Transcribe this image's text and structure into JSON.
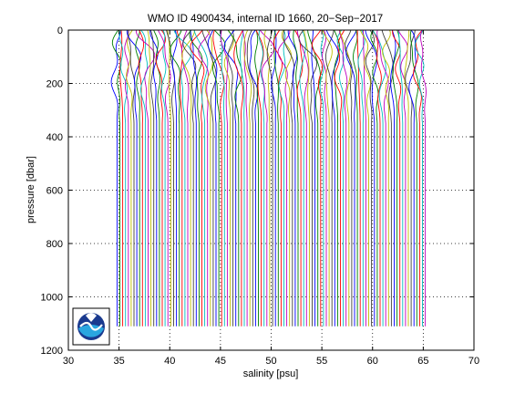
{
  "chart_data": {
    "type": "line",
    "title": "WMO ID 4900434, internal ID 1660, 20−Sep−2017",
    "xlabel": "salinity [psu]",
    "ylabel": "pressure [dbar]",
    "xlim": [
      30,
      70
    ],
    "ylim": [
      1200,
      0
    ],
    "y_reversed": true,
    "xticks": [
      30,
      35,
      40,
      45,
      50,
      55,
      60,
      65,
      70
    ],
    "yticks": [
      0,
      200,
      400,
      600,
      800,
      1000,
      1200
    ],
    "grid": true,
    "grid_style": "dotted",
    "legend": "none",
    "profile_count": 110,
    "profile_salinity_start": 34.8,
    "profile_salinity_end": 65.2,
    "profile_pressure_range": [
      0,
      1110
    ],
    "series_colors": [
      "#0000ff",
      "#007f00",
      "#ff0000",
      "#00bfbf",
      "#bf00bf",
      "#bfbf00",
      "#404040"
    ],
    "logo_icon": "noaa-logo-icon"
  }
}
